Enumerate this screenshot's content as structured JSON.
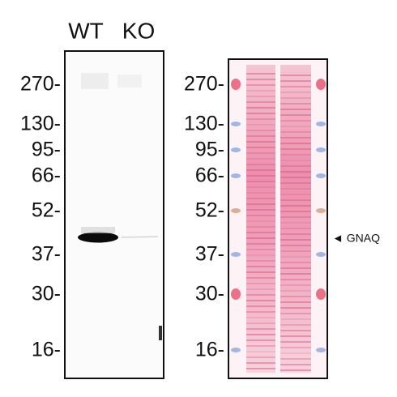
{
  "lane_labels": [
    "WT",
    "KO"
  ],
  "panels": [
    {
      "markers": [
        "270-",
        "130-",
        "95-",
        "66-",
        "52-",
        "37-",
        "30-",
        "16-"
      ]
    },
    {
      "markers": [
        "270-",
        "130-",
        "95-",
        "66-",
        "52-",
        "37-",
        "30-",
        "16-"
      ]
    }
  ],
  "annotation": "◄ GNAQ"
}
